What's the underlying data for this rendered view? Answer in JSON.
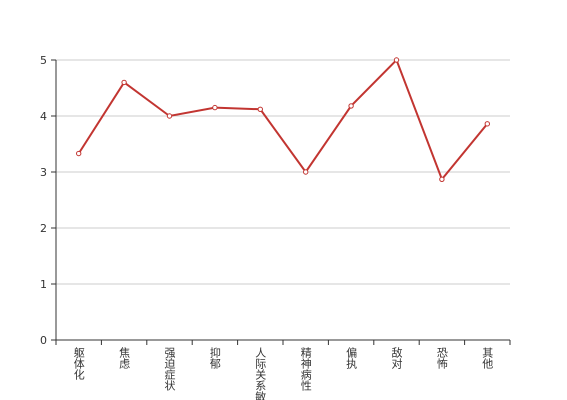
{
  "chart_data": {
    "type": "line",
    "categories": [
      "躯体化",
      "焦虑",
      "强迫症状",
      "抑郁",
      "人际关系敏感",
      "精神病性",
      "偏执",
      "敌对",
      "恐怖",
      "其他"
    ],
    "series": [
      {
        "color": "#c23531",
        "values": [
          3.33,
          4.6,
          4.0,
          4.15,
          4.12,
          3.0,
          4.18,
          5.0,
          2.87,
          3.86
        ]
      }
    ],
    "ylim": [
      0,
      5
    ],
    "yticks": [
      0,
      1,
      2,
      3,
      4,
      5
    ],
    "grid": true
  }
}
